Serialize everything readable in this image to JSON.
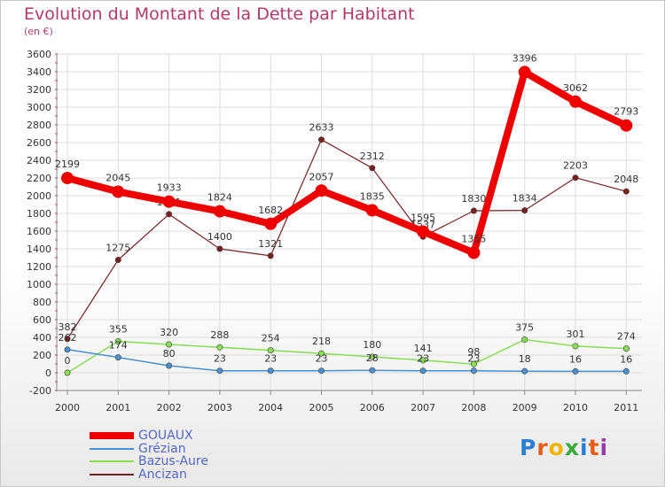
{
  "chart_data": {
    "type": "line",
    "title": "Evolution du Montant de la Dette par Habitant",
    "subtitle": "(en €)",
    "x": [
      "2000",
      "2001",
      "2002",
      "2003",
      "2004",
      "2005",
      "2006",
      "2007",
      "2008",
      "2009",
      "2010",
      "2011"
    ],
    "ylim": [
      -200,
      3600
    ],
    "yticks": [
      -200,
      0,
      200,
      400,
      600,
      800,
      1000,
      1200,
      1400,
      1600,
      1800,
      2000,
      2200,
      2400,
      2600,
      2800,
      3000,
      3200,
      3400,
      3600
    ],
    "grid": true,
    "legend_position": "bottom-left",
    "series": [
      {
        "name": "GOUAUX",
        "color": "#ee0000",
        "values": [
          2199,
          2045,
          1933,
          1824,
          1682,
          2057,
          1835,
          1595,
          1355,
          3396,
          3062,
          2793
        ]
      },
      {
        "name": "Grézian",
        "color": "#4d8fcf",
        "values": [
          262,
          174,
          80,
          23,
          23,
          23,
          28,
          23,
          23,
          18,
          16,
          16
        ]
      },
      {
        "name": "Bazus-Aure",
        "color": "#88dd55",
        "values": [
          0,
          355,
          320,
          288,
          254,
          218,
          180,
          141,
          98,
          375,
          301,
          274
        ]
      },
      {
        "name": "Ancizan",
        "color": "#7a1f1f",
        "values": [
          382,
          1275,
          1791,
          1400,
          1321,
          2633,
          2312,
          1537,
          1830,
          1834,
          2203,
          2048
        ]
      }
    ],
    "data_labels": [
      {
        "series": 3,
        "index": 2,
        "text": "1791"
      }
    ]
  },
  "brand": {
    "logo_text": "Proxiti"
  }
}
